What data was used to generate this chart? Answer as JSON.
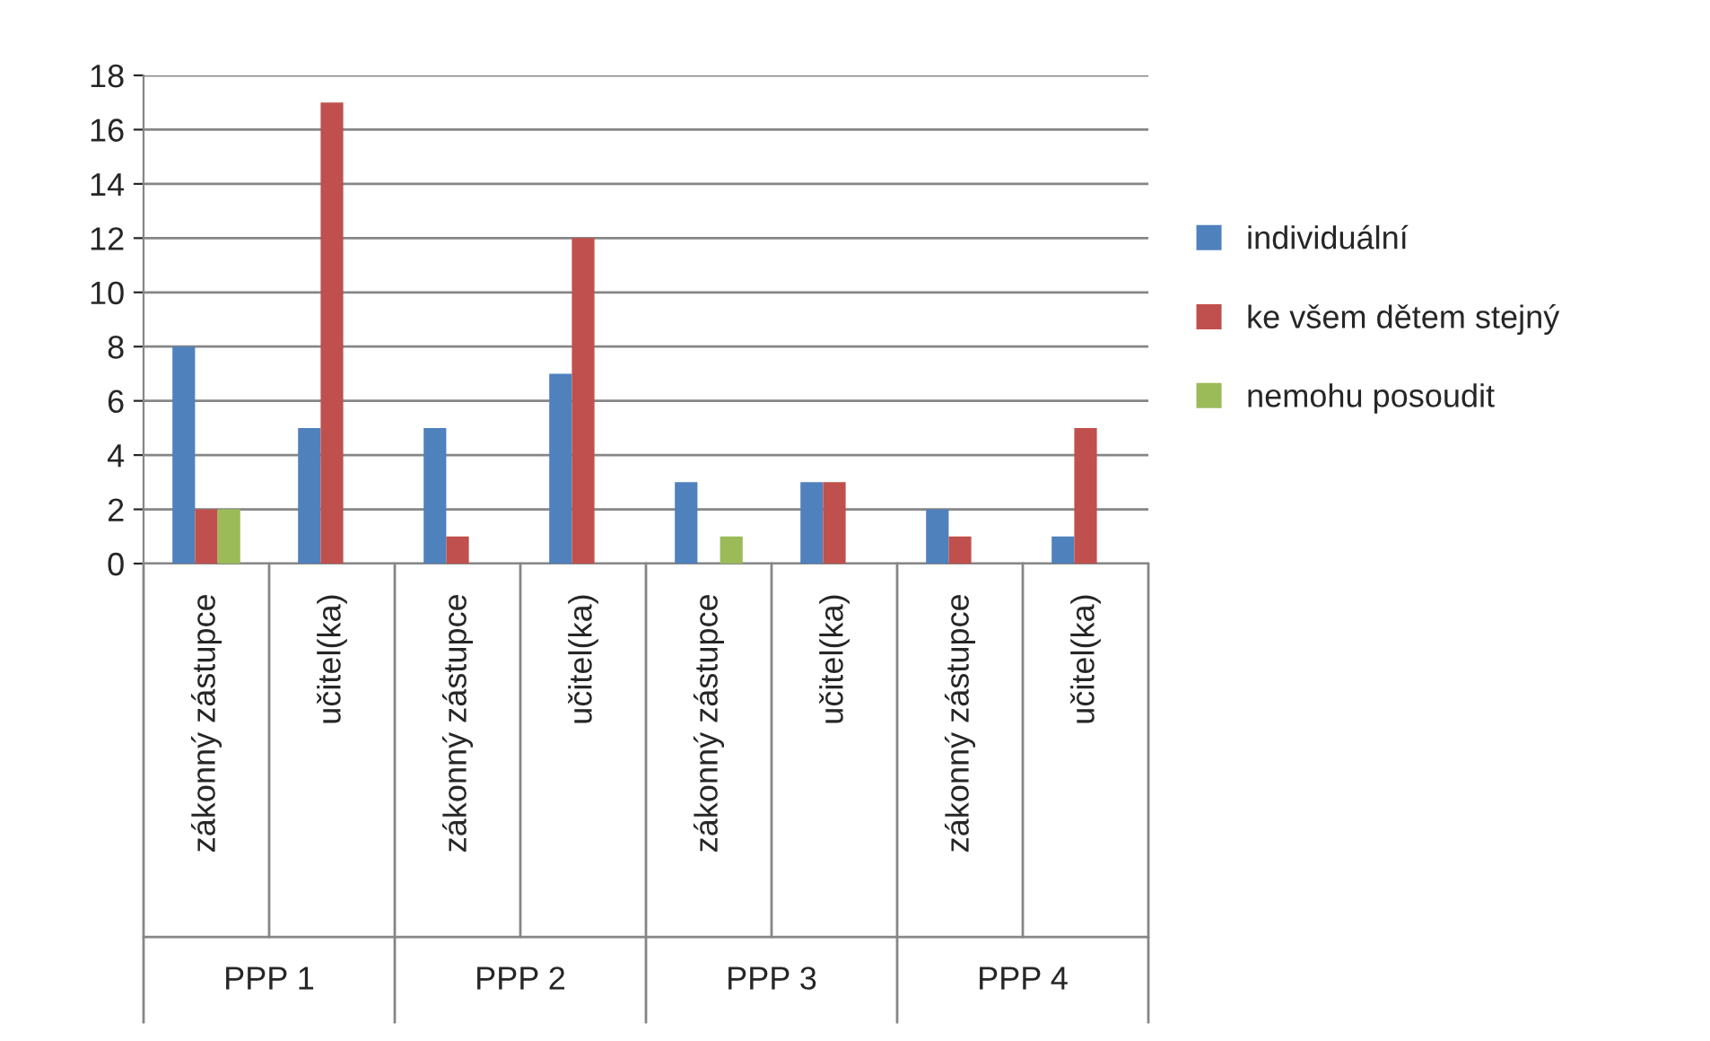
{
  "chart_data": {
    "type": "bar",
    "categories": [
      "zákonný zástupce",
      "učitel(ka)",
      "zákonný zástupce",
      "učitel(ka)",
      "zákonný zástupce",
      "učitel(ka)",
      "zákonný zástupce",
      "učitel(ka)"
    ],
    "series": [
      {
        "name": "individuální",
        "color": "#4f81bd",
        "values": [
          8,
          5,
          5,
          7,
          3,
          3,
          2,
          1
        ]
      },
      {
        "name": "ke všem dětem stejný",
        "color": "#c0504d",
        "values": [
          2,
          17,
          1,
          12,
          0,
          3,
          1,
          5
        ]
      },
      {
        "name": "nemohu posoudit",
        "color": "#9bbb59",
        "values": [
          2,
          0,
          0,
          0,
          1,
          0,
          0,
          0
        ]
      }
    ],
    "annotations": [
      "PPP 1",
      "PPP 2",
      "PPP 3",
      "PPP 4"
    ],
    "ylim": [
      0,
      18
    ],
    "yticks": [
      0,
      2,
      4,
      6,
      8,
      10,
      12,
      14,
      16,
      18
    ],
    "grid": "y",
    "legend": "right"
  }
}
